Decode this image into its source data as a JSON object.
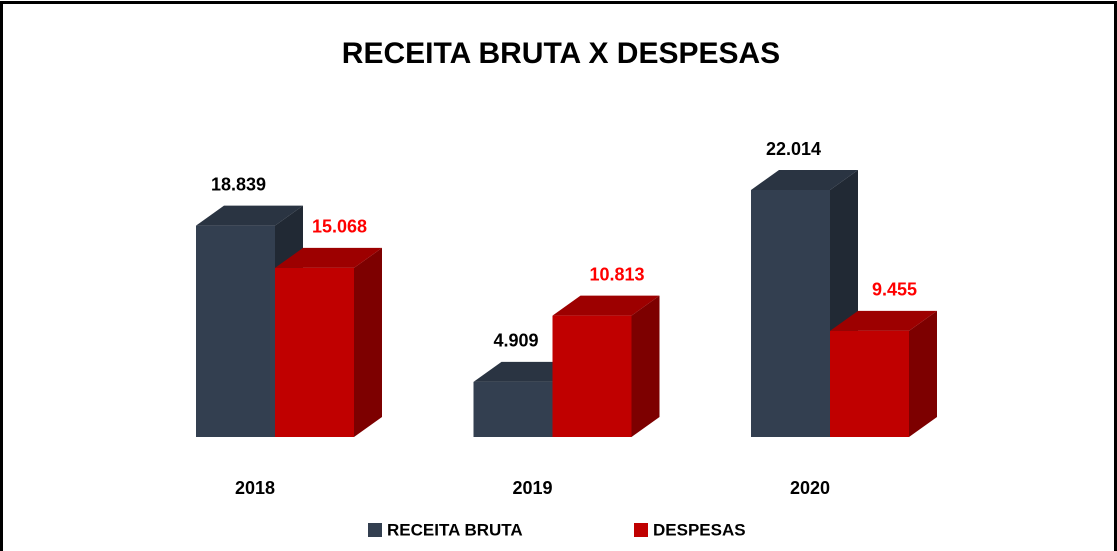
{
  "chart_data": {
    "type": "bar3d",
    "title": "RECEITA BRUTA X DESPESAS",
    "categories": [
      "2018",
      "2019",
      "2020"
    ],
    "series": [
      {
        "name": "RECEITA BRUTA",
        "color": "#333f50",
        "values": [
          18839,
          4909,
          22014
        ],
        "value_labels": [
          "18.839",
          "4.909",
          "22.014"
        ]
      },
      {
        "name": "DESPESAS",
        "color": "#c00000",
        "values": [
          15068,
          10813,
          9455
        ],
        "value_labels": [
          "15.068",
          "10.813",
          "9.455"
        ]
      }
    ]
  }
}
